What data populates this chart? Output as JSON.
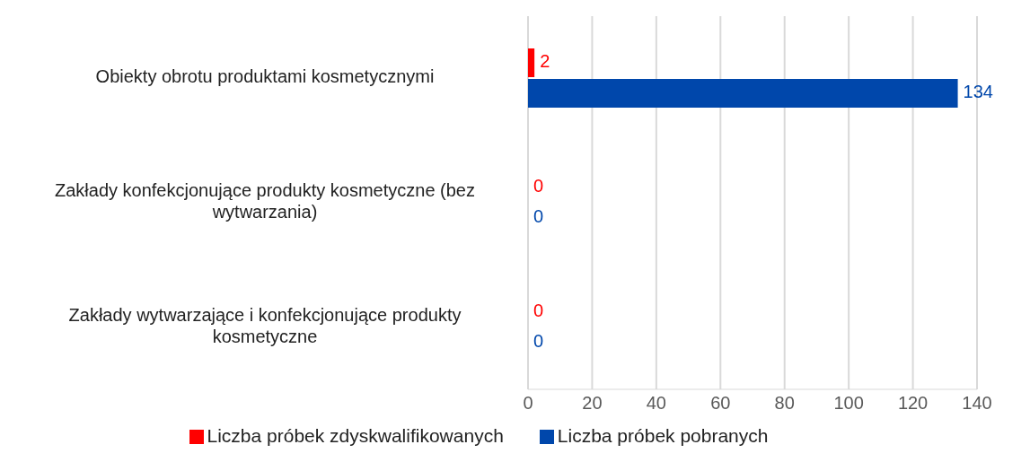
{
  "chart_data": {
    "type": "bar",
    "orientation": "horizontal",
    "categories": [
      "Obiekty obrotu produktami kosmetycznymi",
      "Zakłady konfekcjonujące produkty kosmetyczne (bez wytwarzania)",
      "Zakłady wytwarzające i konfekcjonujące produkty kosmetyczne"
    ],
    "series": [
      {
        "name": "Liczba próbek zdyskwalifikowanych",
        "color": "#ff0000",
        "values": [
          2,
          0,
          0
        ]
      },
      {
        "name": "Liczba próbek pobranych",
        "color": "#0047ab",
        "values": [
          134,
          0,
          0
        ]
      }
    ],
    "xlim": [
      0,
      140
    ],
    "xticks": [
      0,
      20,
      40,
      60,
      80,
      100,
      120,
      140
    ],
    "grid": "x",
    "legend": "bottom",
    "data_labels": true
  }
}
